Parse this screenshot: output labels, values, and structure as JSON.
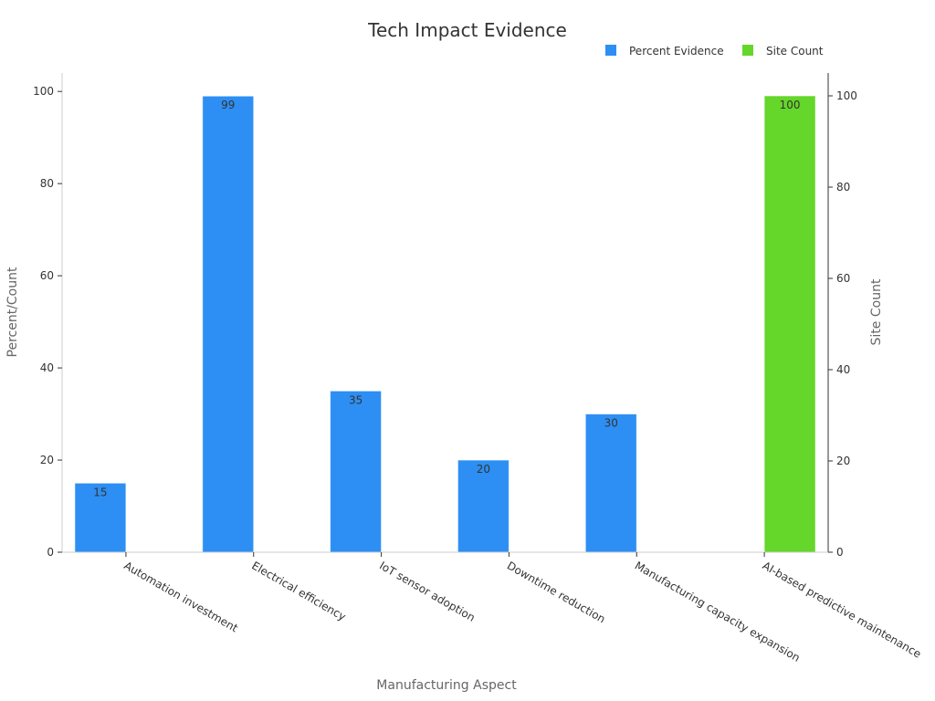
{
  "chart_data": {
    "type": "bar",
    "title": "Tech Impact Evidence",
    "xlabel": "Manufacturing Aspect",
    "ylabel": "Percent/Count",
    "y2label": "Site Count",
    "categories": [
      "Automation investment",
      "Electrical efficiency",
      "IoT sensor adoption",
      "Downtime reduction",
      "Manufacturing capacity expansion",
      "AI-based predictive maintenance"
    ],
    "series": [
      {
        "name": "Percent Evidence",
        "axis": "left",
        "color": "#2d8ff3",
        "values": [
          15,
          99,
          35,
          20,
          30,
          null
        ],
        "labels": [
          "15",
          "99",
          "35",
          "20",
          "30",
          ""
        ]
      },
      {
        "name": "Site Count",
        "axis": "right",
        "color": "#65d62a",
        "values": [
          null,
          null,
          null,
          null,
          null,
          100
        ],
        "labels": [
          "",
          "",
          "",
          "",
          "",
          "100"
        ]
      }
    ],
    "ylim": [
      0,
      104
    ],
    "y2lim": [
      0,
      105
    ],
    "yticks": [
      0,
      20,
      40,
      60,
      80,
      100
    ],
    "y2ticks": [
      0,
      20,
      40,
      60,
      80,
      100
    ],
    "grid": false,
    "legend_position": "top-right"
  }
}
